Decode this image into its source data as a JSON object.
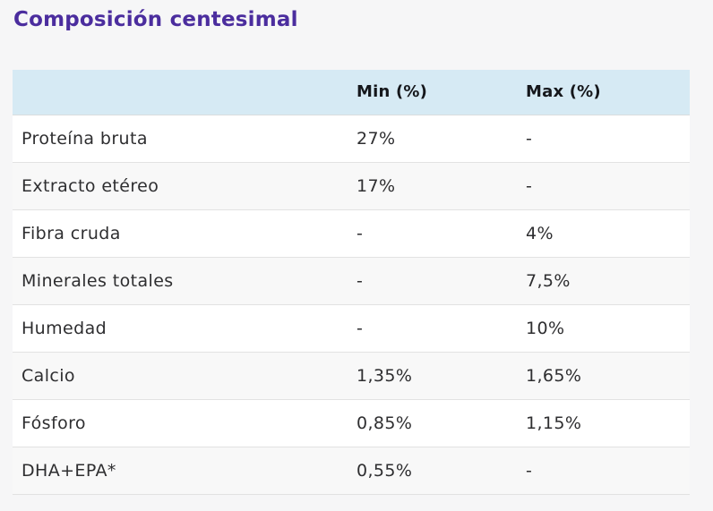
{
  "page": {
    "background_color": "#f6f6f7"
  },
  "header": {
    "title": "Composición centesimal",
    "title_color": "#4b2d9e"
  },
  "table": {
    "header_background_color": "#d6eaf4",
    "columns": [
      {
        "label": ""
      },
      {
        "label": "Min (%)"
      },
      {
        "label": "Max (%)"
      }
    ],
    "rows": [
      {
        "label": "Proteína bruta",
        "min": "27%",
        "max": "-"
      },
      {
        "label": "Extracto etéreo",
        "min": "17%",
        "max": "-"
      },
      {
        "label": "Fibra cruda",
        "min": "-",
        "max": "4%"
      },
      {
        "label": "Minerales totales",
        "min": "-",
        "max": "7,5%"
      },
      {
        "label": "Humedad",
        "min": "-",
        "max": "10%"
      },
      {
        "label": "Calcio",
        "min": "1,35%",
        "max": "1,65%"
      },
      {
        "label": "Fósforo",
        "min": "0,85%",
        "max": "1,15%"
      },
      {
        "label": "DHA+EPA*",
        "min": "0,55%",
        "max": "-"
      }
    ]
  }
}
